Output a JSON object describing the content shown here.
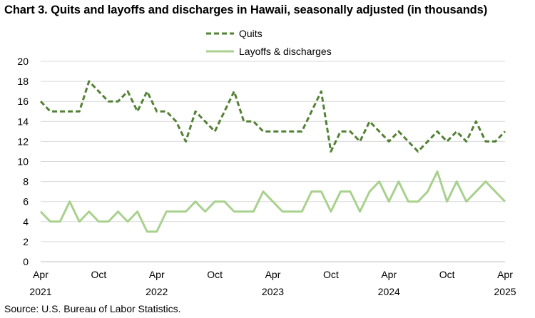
{
  "chart_data": {
    "type": "line",
    "title": "Chart 3. Quits and layoffs and discharges in Hawaii, seasonally adjusted (in thousands)",
    "source": "Source: U.S. Bureau of Labor Statistics.",
    "ylim": [
      0,
      20
    ],
    "yticks": [
      0,
      2,
      4,
      6,
      8,
      10,
      12,
      14,
      16,
      18,
      20
    ],
    "grid": "horizontal",
    "legend": "top-center",
    "x_tick_labels": [
      {
        "index": 0,
        "month": "Apr",
        "year": "2021"
      },
      {
        "index": 6,
        "month": "Oct",
        "year": ""
      },
      {
        "index": 12,
        "month": "Apr",
        "year": "2022"
      },
      {
        "index": 18,
        "month": "Oct",
        "year": ""
      },
      {
        "index": 24,
        "month": "Apr",
        "year": "2023"
      },
      {
        "index": 30,
        "month": "Oct",
        "year": ""
      },
      {
        "index": 36,
        "month": "Apr",
        "year": "2024"
      },
      {
        "index": 42,
        "month": "Oct",
        "year": ""
      },
      {
        "index": 48,
        "month": "Apr",
        "year": "2025"
      }
    ],
    "series": [
      {
        "name": "Quits",
        "color": "#538135",
        "style": "dashed",
        "values": [
          16,
          15,
          15,
          15,
          15,
          18,
          17,
          16,
          16,
          17,
          15,
          17,
          15,
          15,
          14,
          12,
          15,
          14,
          13,
          15,
          17,
          14,
          14,
          13,
          13,
          13,
          13,
          13,
          15,
          17,
          11,
          13,
          13,
          12,
          14,
          13,
          12,
          13,
          12,
          11,
          12,
          13,
          12,
          13,
          12,
          14,
          12,
          12,
          13
        ]
      },
      {
        "name": "Layoffs & discharges",
        "color": "#a9d18e",
        "style": "solid",
        "values": [
          5,
          4,
          4,
          6,
          4,
          5,
          4,
          4,
          5,
          4,
          5,
          3,
          3,
          5,
          5,
          5,
          6,
          5,
          6,
          6,
          5,
          5,
          5,
          7,
          6,
          5,
          5,
          5,
          7,
          7,
          5,
          7,
          7,
          5,
          7,
          8,
          6,
          8,
          6,
          6,
          7,
          9,
          6,
          8,
          6,
          7,
          8,
          7,
          6
        ]
      }
    ]
  }
}
